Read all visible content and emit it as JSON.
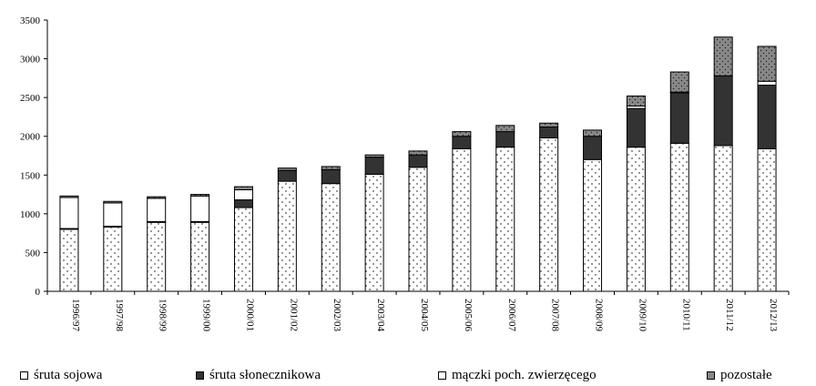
{
  "chart_data": {
    "type": "bar",
    "stacked": true,
    "title": "",
    "xlabel": "",
    "ylabel": "",
    "ylim": [
      0,
      3500
    ],
    "yticks": [
      0,
      500,
      1000,
      1500,
      2000,
      2500,
      3000,
      3500
    ],
    "grid": false,
    "legend_position": "bottom",
    "categories": [
      "1996/97",
      "1997/98",
      "1998/99",
      "1999/00",
      "2000/01",
      "2001/02",
      "2002/03",
      "2003/04",
      "2004/05",
      "2005/06",
      "2006/07",
      "2007/08",
      "2008/09",
      "2009/10",
      "2010/11",
      "2011/12",
      "2012/13"
    ],
    "series": [
      {
        "name": "śruta sojowa",
        "color": "#ffffff",
        "pattern": "dots",
        "values": [
          800,
          830,
          890,
          890,
          1080,
          1420,
          1390,
          1510,
          1600,
          1840,
          1860,
          1980,
          1700,
          1860,
          1910,
          1880,
          1840
        ]
      },
      {
        "name": "śruta słonecznikowa",
        "color": "#333333",
        "pattern": "solid",
        "values": [
          10,
          10,
          10,
          10,
          100,
          140,
          180,
          220,
          160,
          160,
          200,
          140,
          300,
          500,
          650,
          900,
          820
        ]
      },
      {
        "name": "mączki poch. zwierzęcego",
        "color": "#ffffff",
        "pattern": "solid",
        "values": [
          400,
          300,
          300,
          330,
          130,
          0,
          0,
          0,
          0,
          0,
          0,
          0,
          0,
          30,
          10,
          0,
          50
        ]
      },
      {
        "name": "pozostałe",
        "color": "#888888",
        "pattern": "dots",
        "values": [
          20,
          20,
          20,
          20,
          40,
          30,
          40,
          30,
          50,
          60,
          80,
          50,
          80,
          130,
          260,
          500,
          450
        ]
      }
    ]
  }
}
